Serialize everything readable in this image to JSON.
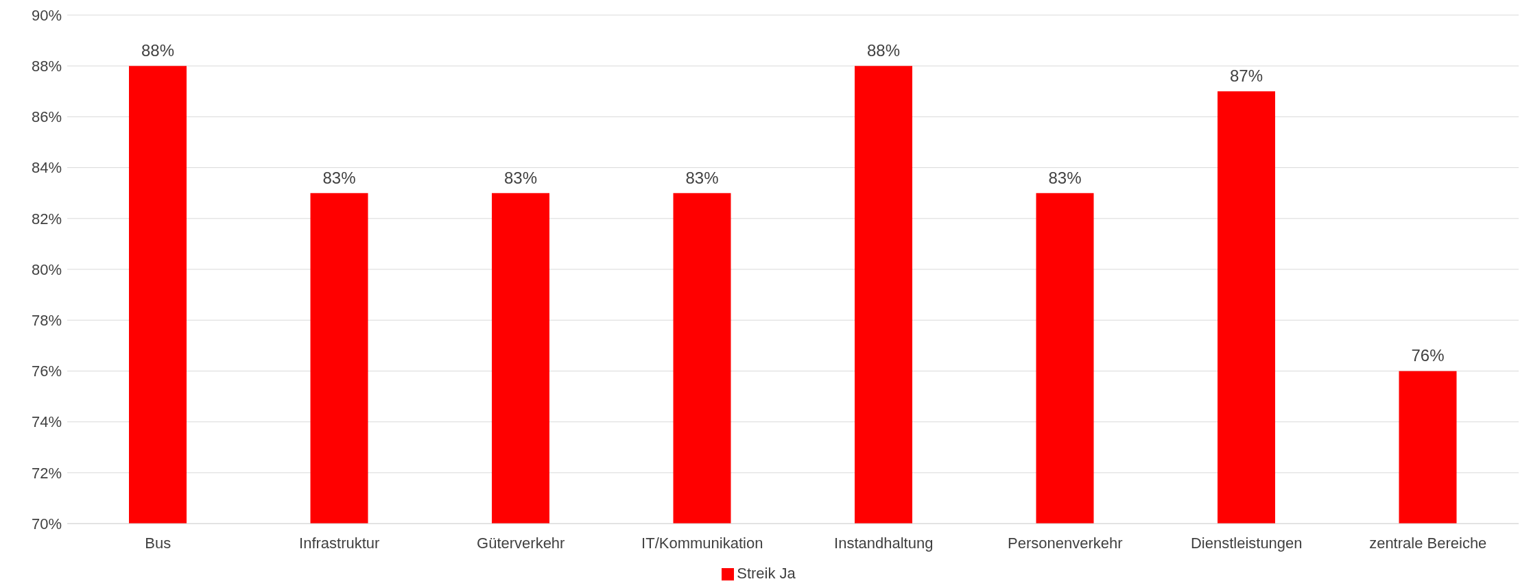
{
  "chart_data": {
    "type": "bar",
    "categories": [
      "Bus",
      "Infrastruktur",
      "Güterverkehr",
      "IT/Kommunikation",
      "Instandhaltung",
      "Personenverkehr",
      "Dienstleistungen",
      "zentrale Bereiche"
    ],
    "series": [
      {
        "name": "Streik Ja",
        "color": "#ff0000",
        "values": [
          88,
          83,
          83,
          83,
          88,
          83,
          87,
          76
        ],
        "value_labels": [
          "88%",
          "83%",
          "83%",
          "83%",
          "88%",
          "83%",
          "87%",
          "76%"
        ]
      }
    ],
    "ylim": [
      70,
      90
    ],
    "yticks": [
      {
        "value": 70,
        "label": "70%"
      },
      {
        "value": 72,
        "label": "72%"
      },
      {
        "value": 74,
        "label": "74%"
      },
      {
        "value": 76,
        "label": "76%"
      },
      {
        "value": 78,
        "label": "78%"
      },
      {
        "value": 80,
        "label": "80%"
      },
      {
        "value": 82,
        "label": "82%"
      },
      {
        "value": 84,
        "label": "84%"
      },
      {
        "value": 86,
        "label": "86%"
      },
      {
        "value": 88,
        "label": "88%"
      },
      {
        "value": 90,
        "label": "90%"
      }
    ],
    "grid": "y",
    "legend": "bottom"
  }
}
